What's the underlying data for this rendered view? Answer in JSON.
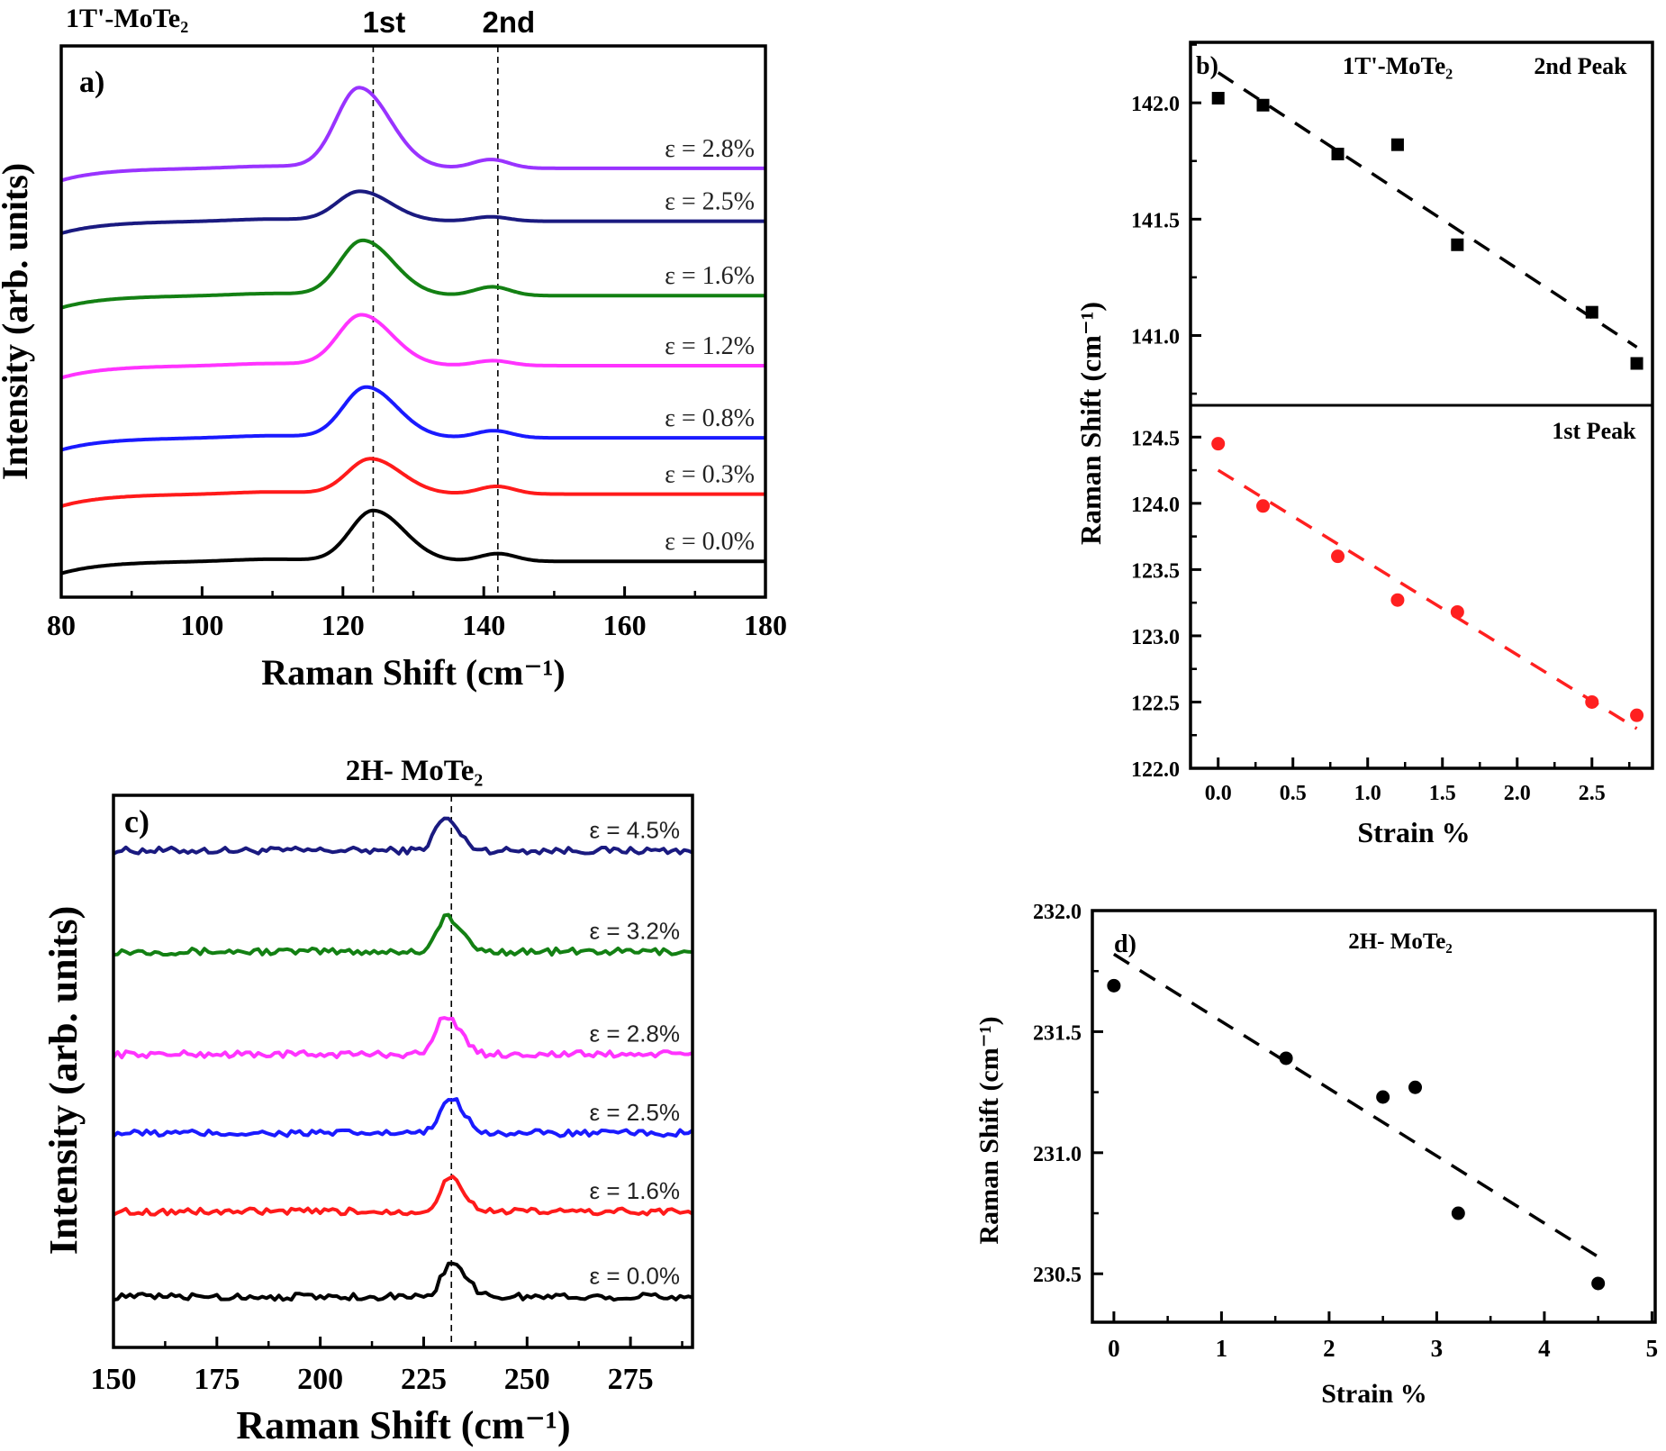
{
  "chart_data": [
    {
      "id": "a",
      "type": "line",
      "panel_label": "a)",
      "title": "1T'-MoTe₂",
      "xlabel": "Raman Shift (cm⁻¹)",
      "ylabel": "Intensity (arb. units)",
      "xlim": [
        80,
        180
      ],
      "ylim": [
        0,
        100
      ],
      "xticks": [
        80,
        100,
        120,
        140,
        160,
        180
      ],
      "grid": false,
      "reference_lines": [
        {
          "label": "1st",
          "x": 124.3
        },
        {
          "label": "2nd",
          "x": 142.0
        }
      ],
      "series": [
        {
          "name": "ε = 2.8%",
          "color": "#9933ff",
          "offset": 77.8,
          "peak1_pos": 122.3,
          "peak1_amp": 14.6,
          "peak2_pos": 141.0,
          "peak2_amp": 1.6
        },
        {
          "name": "ε = 2.5%",
          "color": "#1a1a80",
          "offset": 68.2,
          "peak1_pos": 122.4,
          "peak1_amp": 5.4,
          "peak2_pos": 141.0,
          "peak2_amp": 0.8
        },
        {
          "name": "ε = 1.6%",
          "color": "#138013",
          "offset": 54.7,
          "peak1_pos": 122.8,
          "peak1_amp": 10.0,
          "peak2_pos": 141.2,
          "peak2_amp": 1.6
        },
        {
          "name": "ε = 1.2%",
          "color": "#ff33ff",
          "offset": 42.0,
          "peak1_pos": 122.6,
          "peak1_amp": 9.2,
          "peak2_pos": 141.3,
          "peak2_amp": 0.9
        },
        {
          "name": "ε = 0.8%",
          "color": "#1a1aff",
          "offset": 28.9,
          "peak1_pos": 123.3,
          "peak1_amp": 9.2,
          "peak2_pos": 141.4,
          "peak2_amp": 1.3
        },
        {
          "name": "ε = 0.3%",
          "color": "#ff1a1a",
          "offset": 18.7,
          "peak1_pos": 123.9,
          "peak1_amp": 6.4,
          "peak2_pos": 141.8,
          "peak2_amp": 1.4
        },
        {
          "name": "ε = 0.0%",
          "color": "#000000",
          "offset": 6.5,
          "peak1_pos": 124.3,
          "peak1_amp": 9.2,
          "peak2_pos": 142.0,
          "peak2_amp": 1.4
        }
      ]
    },
    {
      "id": "b",
      "type": "scatter",
      "panel_label": "b)",
      "title": "1T'-MoTe₂",
      "xlabel": "Strain %",
      "ylabel": "Raman Shift (cm⁻¹)",
      "xlim": [
        -0.185,
        2.905
      ],
      "xticks": [
        "0.0",
        "0.5",
        "1.0",
        "1.5",
        "2.0",
        "2.5"
      ],
      "grid": false,
      "subplots": [
        {
          "label": "2nd Peak",
          "ylim": [
            140.7,
            142.26
          ],
          "yticks": [
            "141.0",
            "141.5",
            "142.0"
          ],
          "marker": "square",
          "color": "#000000",
          "x": [
            0,
            0.3,
            0.8,
            1.2,
            1.6,
            2.5,
            2.8
          ],
          "y": [
            142.02,
            141.99,
            141.78,
            141.82,
            141.39,
            141.1,
            140.88
          ],
          "fit": {
            "x": [
              0,
              2.8
            ],
            "y": [
              142.13,
              140.95
            ]
          }
        },
        {
          "label": "1st Peak",
          "ylim": [
            122.0,
            124.74
          ],
          "yticks": [
            "122.0",
            "122.5",
            "123.0",
            "123.5",
            "124.0",
            "124.5"
          ],
          "marker": "circle",
          "color": "#ff2020",
          "x": [
            0,
            0.3,
            0.8,
            1.2,
            1.6,
            2.5,
            2.8
          ],
          "y": [
            124.45,
            123.98,
            123.6,
            123.27,
            123.18,
            122.5,
            122.4
          ],
          "fit": {
            "x": [
              0,
              2.8
            ],
            "y": [
              124.25,
              122.3
            ]
          }
        }
      ]
    },
    {
      "id": "c",
      "type": "line",
      "panel_label": "c)",
      "title": "2H- MoTe₂",
      "xlabel": "Raman Shift (cm⁻¹)",
      "ylabel": "Intensity (arb. units)",
      "xlim": [
        150,
        290
      ],
      "ylim": [
        0,
        100
      ],
      "xticks": [
        150,
        175,
        200,
        225,
        250,
        275
      ],
      "grid": false,
      "reference_lines": [
        {
          "x": 231.7
        }
      ],
      "series": [
        {
          "name": "ε = 4.5%",
          "color": "#1a1a80",
          "offset": 90.0,
          "peak_pos": 230.0,
          "peak_amp": 5.8
        },
        {
          "name": "ε = 3.2%",
          "color": "#138013",
          "offset": 71.7,
          "peak_pos": 230.5,
          "peak_amp": 6.3
        },
        {
          "name": "ε = 2.8%",
          "color": "#ff33ff",
          "offset": 53.1,
          "peak_pos": 230.3,
          "peak_amp": 7.1
        },
        {
          "name": "ε = 2.5%",
          "color": "#1a1aff",
          "offset": 38.8,
          "peak_pos": 231.3,
          "peak_amp": 6.5
        },
        {
          "name": "ε = 1.6%",
          "color": "#ff1a1a",
          "offset": 24.6,
          "peak_pos": 231.3,
          "peak_amp": 6.2
        },
        {
          "name": "ε = 0.0%",
          "color": "#000000",
          "offset": 9.2,
          "peak_pos": 231.7,
          "peak_amp": 6.3
        }
      ]
    },
    {
      "id": "d",
      "type": "scatter",
      "panel_label": "d)",
      "title": "2H- MoTe₂",
      "xlabel": "Strain %",
      "ylabel": "Raman Shift (cm⁻¹)",
      "xlim": [
        -0.2,
        5.03
      ],
      "ylim": [
        230.3,
        232.0
      ],
      "xticks": [
        "0",
        "1",
        "2",
        "3",
        "4",
        "5"
      ],
      "yticks": [
        "230.5",
        "231.0",
        "231.5",
        "232.0"
      ],
      "grid": false,
      "marker": "circle",
      "color": "#000000",
      "x": [
        0,
        1.6,
        2.5,
        2.8,
        3.2,
        4.5
      ],
      "y": [
        231.69,
        231.39,
        231.23,
        231.27,
        230.75,
        230.46
      ],
      "fit": {
        "x": [
          0,
          4.5
        ],
        "y": [
          231.82,
          230.57
        ]
      }
    }
  ]
}
